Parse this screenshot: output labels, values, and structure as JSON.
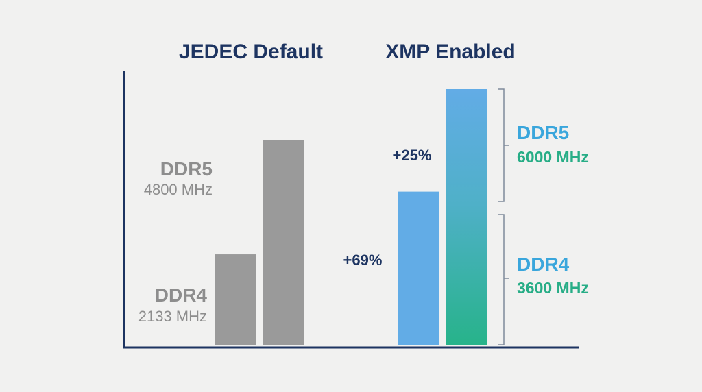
{
  "chart_data": {
    "type": "bar",
    "ylim": [
      0,
      6400
    ],
    "groups": [
      {
        "title": "JEDEC Default",
        "bars": [
          {
            "name": "DDR4",
            "freq_label": "2133 MHz",
            "value": 2133,
            "color": "#9a9a9a"
          },
          {
            "name": "DDR5",
            "freq_label": "4800 MHz",
            "value": 4800,
            "color": "#9a9a9a"
          }
        ]
      },
      {
        "title": "XMP Enabled",
        "bars": [
          {
            "name": "DDR4",
            "freq_label": "3600 MHz",
            "value": 3600,
            "color": "#62ace6",
            "gain": "+69%"
          },
          {
            "name": "DDR5",
            "freq_label": "6000 MHz",
            "value": 6000,
            "color_top": "#62ace6",
            "color_bottom": "#27b38a",
            "gain": "+25%"
          }
        ]
      }
    ],
    "colors": {
      "axis": "#1d3461",
      "gray_text": "#8d8d8d",
      "ddr5_label": "#3aa6dc",
      "ddr4_label": "#27ad86",
      "freq_label": "#27ad86",
      "bracket": "#7f8a9a"
    }
  }
}
